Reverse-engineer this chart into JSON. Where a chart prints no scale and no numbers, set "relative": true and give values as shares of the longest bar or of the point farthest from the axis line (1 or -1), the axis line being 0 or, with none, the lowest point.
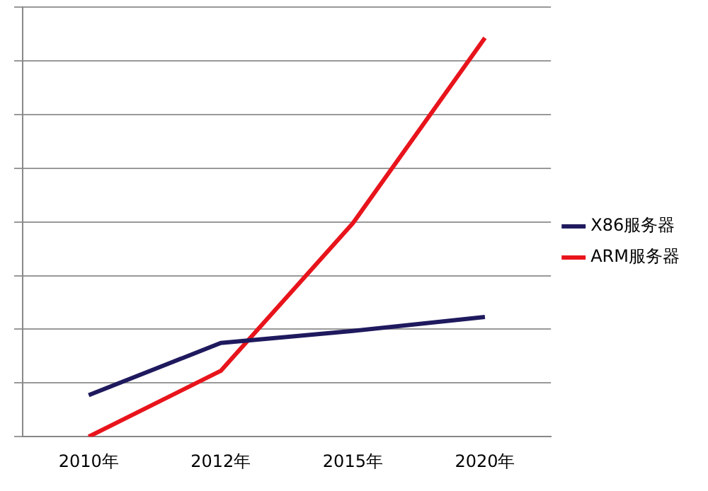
{
  "chart_data": {
    "type": "line",
    "relative": true,
    "categories": [
      "2010年",
      "2012年",
      "2015年",
      "2020年"
    ],
    "series": [
      {
        "name": "X86服务器",
        "color": "#1f1a5e",
        "values": [
          0.104,
          0.235,
          0.265,
          0.3
        ]
      },
      {
        "name": "ARM服务器",
        "color": "#e8141c",
        "values": [
          0,
          0.165,
          0.535,
          1
        ]
      }
    ],
    "grid": "y",
    "legend": "right",
    "marker": "none",
    "line_style": "solid"
  }
}
